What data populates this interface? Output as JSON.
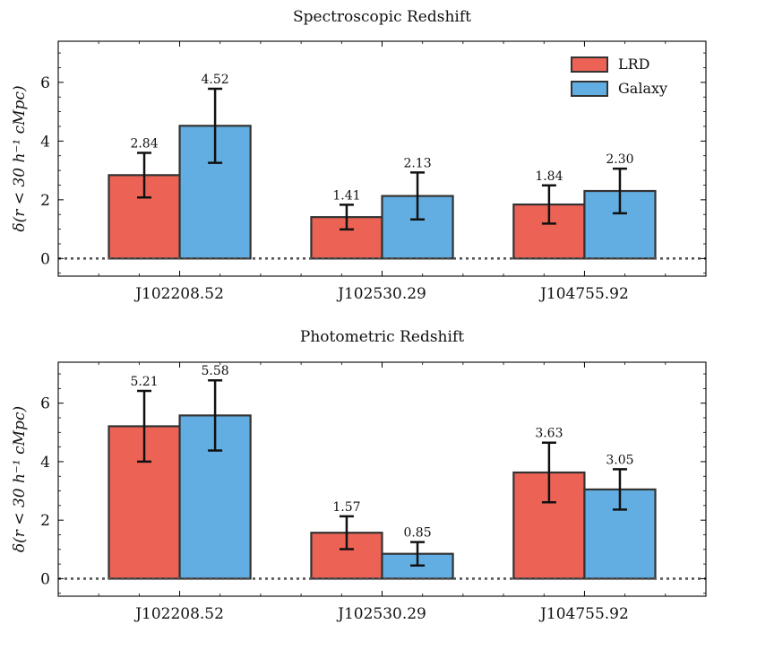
{
  "colors": {
    "LRD": "#ec6356",
    "Galaxy": "#62aee2",
    "edge": "#333333",
    "errorbar": "#111111",
    "zero_line": "#555555"
  },
  "chart_data": [
    {
      "type": "bar",
      "title": "Spectroscopic Redshift",
      "ylabel": "δ(r < 30 h⁻¹ cMpc)",
      "xlabel": "",
      "categories": [
        "J102208.52",
        "J102530.29",
        "J104755.92"
      ],
      "series": [
        {
          "name": "LRD",
          "values": [
            2.84,
            1.41,
            1.84
          ],
          "errors": [
            0.76,
            0.42,
            0.65
          ]
        },
        {
          "name": "Galaxy",
          "values": [
            4.52,
            2.13,
            2.3
          ],
          "errors": [
            1.26,
            0.8,
            0.76
          ]
        }
      ],
      "data_labels": [
        [
          "2.84",
          "1.41",
          "1.84"
        ],
        [
          "4.52",
          "2.13",
          "2.30"
        ]
      ],
      "ylim": [
        -0.6,
        7.4
      ],
      "yticks": [
        "0",
        "2",
        "4",
        "6"
      ],
      "legend": "top-right",
      "grid": false,
      "zero_line": "dotted"
    },
    {
      "type": "bar",
      "title": "Photometric Redshift",
      "ylabel": "δ(r < 30 h⁻¹ cMpc)",
      "xlabel": "",
      "categories": [
        "J102208.52",
        "J102530.29",
        "J104755.92"
      ],
      "series": [
        {
          "name": "LRD",
          "values": [
            5.21,
            1.57,
            3.63
          ],
          "errors": [
            1.21,
            0.56,
            1.02
          ]
        },
        {
          "name": "Galaxy",
          "values": [
            5.58,
            0.85,
            3.05
          ],
          "errors": [
            1.2,
            0.4,
            0.69
          ]
        }
      ],
      "data_labels": [
        [
          "5.21",
          "1.57",
          "3.63"
        ],
        [
          "5.58",
          "0.85",
          "3.05"
        ]
      ],
      "ylim": [
        -0.6,
        7.4
      ],
      "yticks": [
        "0",
        "2",
        "4",
        "6"
      ],
      "legend": "none",
      "grid": false,
      "zero_line": "dotted"
    }
  ]
}
